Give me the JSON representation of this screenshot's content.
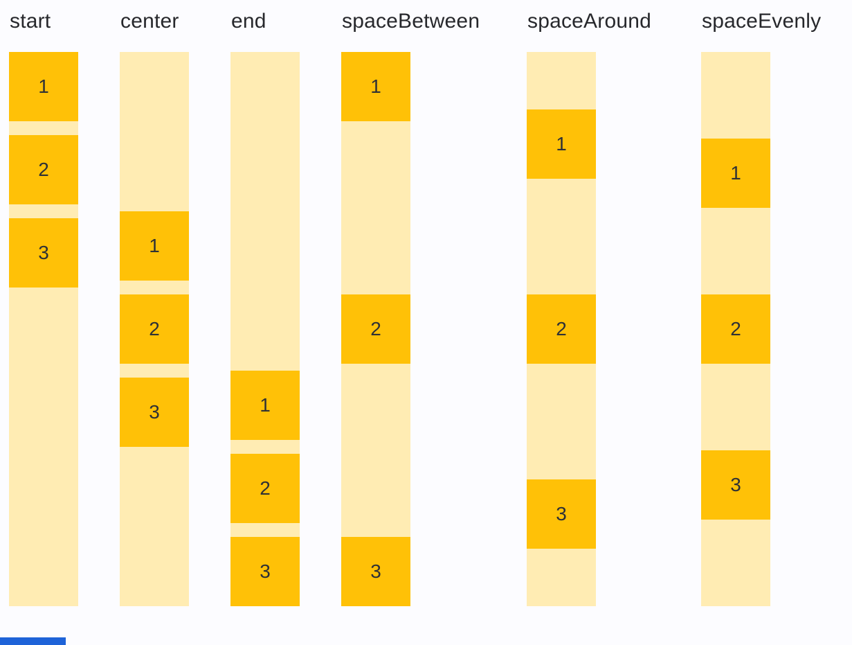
{
  "columns": [
    {
      "label": "start",
      "justify": "flex-start",
      "gap": 20,
      "boxes": [
        "1",
        "2",
        "3"
      ]
    },
    {
      "label": "center",
      "justify": "center",
      "gap": 20,
      "boxes": [
        "1",
        "2",
        "3"
      ]
    },
    {
      "label": "end",
      "justify": "flex-end",
      "gap": 20,
      "boxes": [
        "1",
        "2",
        "3"
      ]
    },
    {
      "label": "spaceBetween",
      "justify": "space-between",
      "gap": 0,
      "boxes": [
        "1",
        "2",
        "3"
      ]
    },
    {
      "label": "spaceAround",
      "justify": "space-around",
      "gap": 0,
      "boxes": [
        "1",
        "2",
        "3"
      ]
    },
    {
      "label": "spaceEvenly",
      "justify": "space-evenly",
      "gap": 0,
      "boxes": [
        "1",
        "2",
        "3"
      ]
    }
  ],
  "colors": {
    "background": "#FCFCFF",
    "box": "#FFC107",
    "track": "#FFECB3",
    "label_text": "#27282C",
    "number_text": "#2F3135",
    "progress_bar": "#1E63D8"
  }
}
